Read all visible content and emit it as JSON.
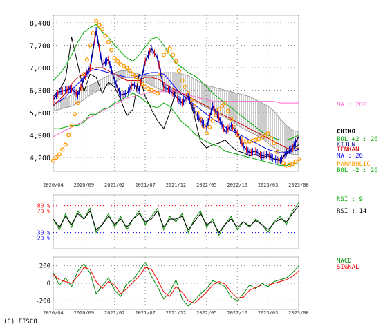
{
  "copyright": "(C) FISCO",
  "chart_data": [
    {
      "type": "line",
      "panel": "price",
      "title": "",
      "xlabel": "",
      "ylabel": "",
      "y_ticks": [
        8400,
        7700,
        7000,
        6300,
        5600,
        4900,
        4200
      ],
      "y_tick_labels": [
        "8,400",
        "7,700",
        "7,000",
        "6,300",
        "5,600",
        "4,900",
        "4,200"
      ],
      "ylim": [
        3700,
        8650
      ],
      "x_tick_labels": [
        "2020/04",
        "2020/09",
        "2021/02",
        "2021/07",
        "2021/12",
        "2022/05",
        "2022/10",
        "2023/03",
        "2023/08"
      ],
      "x": [
        0,
        1,
        2,
        3,
        4,
        5,
        6,
        7,
        8,
        9,
        10,
        11,
        12,
        13,
        14,
        15,
        16,
        17,
        18,
        19,
        20,
        21,
        22,
        23,
        24,
        25,
        26,
        27,
        28,
        29,
        30,
        31,
        32,
        33,
        34,
        35,
        36,
        37,
        38,
        39,
        40
      ],
      "series": [
        {
          "name": "",
          "color": "#000080",
          "values": [
            6000,
            6250,
            6300,
            6350,
            6150,
            6650,
            7000,
            8150,
            7100,
            7250,
            6600,
            6150,
            6200,
            6500,
            6300,
            7200,
            7600,
            7300,
            6400,
            6300,
            6100,
            5900,
            6100,
            5650,
            5350,
            5150,
            5800,
            5450,
            5000,
            5200,
            4950,
            4550,
            4350,
            4400,
            4250,
            4300,
            4150,
            4100,
            4350,
            4500,
            4850
          ]
        },
        {
          "name": "",
          "color": "#000000",
          "values": [
            6100,
            6300,
            6650,
            7950,
            7100,
            6250,
            6800,
            6700,
            6200,
            6550,
            6400,
            6000,
            5500,
            5700,
            6800,
            6100,
            5700,
            5350,
            5100,
            5600,
            6300,
            6200,
            6100,
            5500,
            4700,
            4500,
            4600,
            4650,
            4750,
            4550,
            4400,
            4350,
            4250,
            4300,
            4200,
            4250,
            4150,
            4150,
            4300,
            4450,
            4600
          ]
        },
        {
          "name": "MA : 26",
          "color": "#0000ff",
          "values": [
            5850,
            5950,
            6100,
            6300,
            6500,
            6700,
            6900,
            6950,
            6900,
            6850,
            6800,
            6750,
            6700,
            6700,
            6750,
            6800,
            6850,
            6850,
            6800,
            6600,
            6350,
            6150,
            6000,
            5850,
            5700,
            5550,
            5400,
            5300,
            5150,
            5050,
            4950,
            4850,
            4750,
            4650,
            4550,
            4450,
            4400,
            4350,
            4350,
            4400,
            4450
          ]
        },
        {
          "name": "MA : 200",
          "color": "#ff66cc",
          "values": [
            4850,
            4950,
            5050,
            5150,
            5250,
            5350,
            5450,
            5550,
            5650,
            5750,
            5850,
            5950,
            6050,
            6100,
            6150,
            6200,
            6250,
            6250,
            6250,
            6250,
            6250,
            6200,
            6150,
            6100,
            6050,
            6000,
            5950,
            5950,
            5950,
            5950,
            5950,
            5950,
            5950,
            5950,
            5950,
            5950,
            5950,
            5900,
            5900,
            5900,
            5900
          ]
        },
        {
          "name": "",
          "color": "#cc0000",
          "values": [
            5800,
            6000,
            6200,
            6500,
            6700,
            6800,
            6950,
            7000,
            7000,
            6900,
            6800,
            6700,
            6600,
            6600,
            6600,
            6700,
            6700,
            6650,
            6550,
            6400,
            6300,
            6200,
            6100,
            6000,
            5900,
            5800,
            5700,
            5600,
            5500,
            5400,
            5300,
            5200,
            5100,
            5000,
            4900,
            4800,
            4700,
            4600,
            4500,
            4450,
            4500
          ]
        },
        {
          "name": "BOL +2 : 26",
          "color": "#00aa00",
          "values": [
            6600,
            6800,
            7050,
            7400,
            7800,
            8100,
            8250,
            8350,
            8100,
            7950,
            7700,
            7500,
            7300,
            7200,
            7400,
            7650,
            7900,
            7950,
            7700,
            7400,
            7150,
            7000,
            6850,
            6750,
            6600,
            6400,
            6200,
            6050,
            5900,
            5750,
            5600,
            5450,
            5300,
            5150,
            5000,
            4900,
            4800,
            4750,
            4750,
            4800,
            4900
          ]
        },
        {
          "name": "BOL -2 : 26",
          "color": "#00aa00",
          "values": [
            5100,
            5100,
            5150,
            5200,
            5200,
            5300,
            5550,
            5550,
            5700,
            5750,
            5900,
            6000,
            6100,
            6200,
            6100,
            5950,
            5800,
            5750,
            5900,
            5800,
            5550,
            5300,
            5150,
            4950,
            4800,
            4700,
            4600,
            4550,
            4400,
            4350,
            4300,
            4250,
            4200,
            4150,
            4100,
            4050,
            4000,
            3950,
            3950,
            4000,
            4000
          ]
        },
        {
          "name": "PARABOLIC",
          "color": "#ff9900",
          "mark": "dot",
          "values": [
            4100,
            4300,
            4600,
            5200,
            5900,
            6800,
            7700,
            8450,
            8200,
            7800,
            7300,
            7100,
            7000,
            6800,
            6600,
            6400,
            6300,
            6200,
            7400,
            7600,
            7200,
            6600,
            6200,
            5800,
            5400,
            4950,
            5350,
            5700,
            5900,
            5400,
            4900,
            4700,
            4700,
            4750,
            4800,
            4950,
            4650,
            4100,
            3950,
            4000,
            4150
          ]
        }
      ],
      "ichimoku_cloud": {
        "upper": [
          5900,
          5950,
          6050,
          6150,
          6250,
          6350,
          6450,
          6550,
          6650,
          6750,
          6850,
          6900,
          6900,
          6850,
          6800,
          6750,
          6750,
          6750,
          6850,
          6850,
          6850,
          6800,
          6750,
          6650,
          6550,
          6450,
          6400,
          6350,
          6300,
          6250,
          6200,
          6150,
          6100,
          6000,
          5900,
          5800,
          5650,
          5400,
          5200,
          5050,
          5000
        ],
        "lower": [
          5650,
          5700,
          5750,
          5800,
          5900,
          6000,
          6150,
          6250,
          6350,
          6450,
          6550,
          6650,
          6700,
          6700,
          6650,
          6550,
          6450,
          6350,
          6300,
          6250,
          6200,
          6150,
          6050,
          5950,
          5850,
          5750,
          5650,
          5550,
          5450,
          5350,
          5200,
          5100,
          5000,
          4900,
          4800,
          4650,
          4500,
          4400,
          4350,
          4300,
          4300
        ]
      },
      "legend": [
        {
          "label": "CHIKO",
          "color": "#000000"
        },
        {
          "label": "BOL +2 : 26",
          "color": "#00aa00"
        },
        {
          "label": "KIJUN",
          "color": "#000080"
        },
        {
          "label": "TENKAN",
          "color": "#cc0000"
        },
        {
          "label": "MA : 26",
          "color": "#0000ff"
        },
        {
          "label": "PARABOLIC",
          "color": "#ff9900"
        },
        {
          "label": "BOL -2 : 26",
          "color": "#00aa00"
        }
      ],
      "ma200_label": "MA : 200",
      "grid": true
    },
    {
      "type": "line",
      "panel": "rsi",
      "ylim": [
        0,
        100
      ],
      "y_ticks": [
        80,
        70,
        30,
        20
      ],
      "y_tick_labels": [
        "80 %",
        "70 %",
        "30 %",
        "20 %"
      ],
      "legend": [
        {
          "label": "RSI : 9",
          "color": "#00aa00"
        },
        {
          "label": "RSI : 14",
          "color": "#000000"
        }
      ],
      "series": [
        {
          "name": "RSI : 9",
          "color": "#008800",
          "values": [
            55,
            35,
            65,
            40,
            70,
            55,
            75,
            30,
            45,
            65,
            40,
            60,
            35,
            55,
            70,
            45,
            60,
            75,
            35,
            60,
            50,
            65,
            30,
            55,
            70,
            40,
            55,
            25,
            45,
            60,
            35,
            50,
            40,
            55,
            45,
            30,
            50,
            60,
            45,
            70,
            85
          ]
        },
        {
          "name": "RSI : 14",
          "color": "#000000",
          "values": [
            55,
            40,
            60,
            45,
            65,
            55,
            70,
            35,
            45,
            60,
            45,
            55,
            40,
            55,
            65,
            50,
            55,
            70,
            40,
            55,
            55,
            60,
            35,
            50,
            65,
            45,
            50,
            30,
            45,
            55,
            40,
            50,
            42,
            52,
            45,
            35,
            48,
            55,
            50,
            65,
            80
          ]
        }
      ],
      "grid": true
    },
    {
      "type": "line",
      "panel": "macd",
      "ylim": [
        -300,
        300
      ],
      "y_ticks": [
        200,
        0,
        -200
      ],
      "y_tick_labels": [
        "200",
        "0",
        "-200"
      ],
      "legend": [
        {
          "label": "MACD",
          "color": "#008800"
        },
        {
          "label": "SIGNAL",
          "color": "#ff0000"
        }
      ],
      "series": [
        {
          "name": "MACD",
          "color": "#008800",
          "values": [
            120,
            -20,
            60,
            -40,
            140,
            220,
            120,
            -120,
            -30,
            60,
            -80,
            -150,
            0,
            40,
            140,
            240,
            80,
            -40,
            -180,
            -100,
            40,
            -180,
            -260,
            -200,
            -120,
            -60,
            30,
            0,
            -40,
            -160,
            -200,
            -120,
            -20,
            -60,
            0,
            -40,
            20,
            40,
            60,
            120,
            200
          ]
        },
        {
          "name": "SIGNAL",
          "color": "#ff0000",
          "values": [
            100,
            40,
            20,
            0,
            80,
            180,
            160,
            20,
            -60,
            20,
            -20,
            -120,
            -60,
            10,
            80,
            180,
            160,
            40,
            -100,
            -150,
            -40,
            -100,
            -200,
            -230,
            -170,
            -100,
            -20,
            20,
            -10,
            -100,
            -170,
            -160,
            -80,
            -50,
            -20,
            -20,
            0,
            20,
            40,
            80,
            140
          ]
        }
      ],
      "grid": true
    }
  ]
}
